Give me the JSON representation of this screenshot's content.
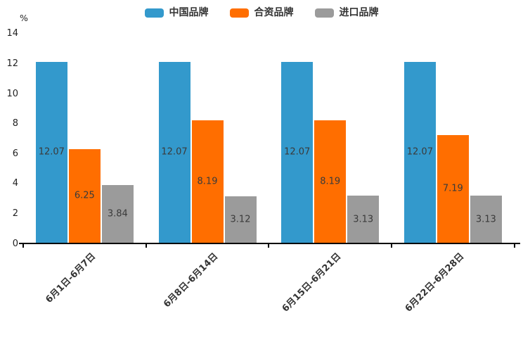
{
  "chart_data": {
    "type": "bar",
    "title": "",
    "unit_label": "%",
    "categories": [
      "6月1日-6月7日",
      "6月8日-6月14日",
      "6月15日-6月21日",
      "6月22日-6月28日"
    ],
    "series": [
      {
        "name": "中国品牌",
        "color": "#3399CC",
        "values": [
          12.07,
          12.07,
          12.07,
          12.07
        ]
      },
      {
        "name": "合资品牌",
        "color": "#FF6E00",
        "values": [
          6.25,
          8.19,
          8.19,
          7.19
        ]
      },
      {
        "name": "进口品牌",
        "color": "#9B9B9B",
        "values": [
          3.84,
          3.12,
          3.13,
          3.13
        ]
      }
    ],
    "y_ticks": [
      0,
      2,
      4,
      6,
      8,
      10,
      12,
      14
    ],
    "ylim": [
      0,
      14
    ],
    "grid": false,
    "legend_position": "top",
    "value_labels": "inside-center",
    "value_label_color": "#3a3a3a",
    "axis_color": "#000000",
    "text_color": "#333333"
  }
}
